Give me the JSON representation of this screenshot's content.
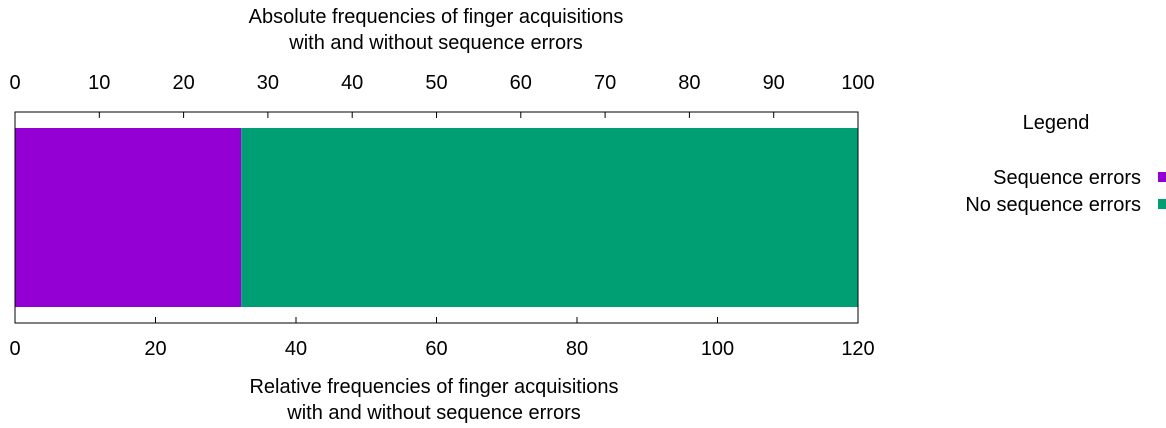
{
  "chart_data": {
    "type": "bar",
    "orientation": "horizontal",
    "stacked": true,
    "title_top": [
      "Absolute frequencies of finger acquisitions",
      "with and without sequence errors"
    ],
    "title_bottom": [
      "Relative frequencies of finger acquisitions",
      "with and without sequence errors"
    ],
    "top_axis": {
      "range": [
        0,
        100
      ],
      "ticks": [
        0,
        10,
        20,
        30,
        40,
        50,
        60,
        70,
        80,
        90,
        100
      ]
    },
    "bottom_axis": {
      "range": [
        0,
        120
      ],
      "ticks": [
        0,
        20,
        40,
        60,
        80,
        100,
        120
      ]
    },
    "series": [
      {
        "name": "Sequence errors",
        "value": 32.2,
        "color": "#9400d3"
      },
      {
        "name": "No sequence errors",
        "value": 87.8,
        "color": "#009e73"
      }
    ],
    "value_axis": "bottom",
    "grid": false,
    "legend": {
      "title": "Legend",
      "placement": "right"
    }
  }
}
